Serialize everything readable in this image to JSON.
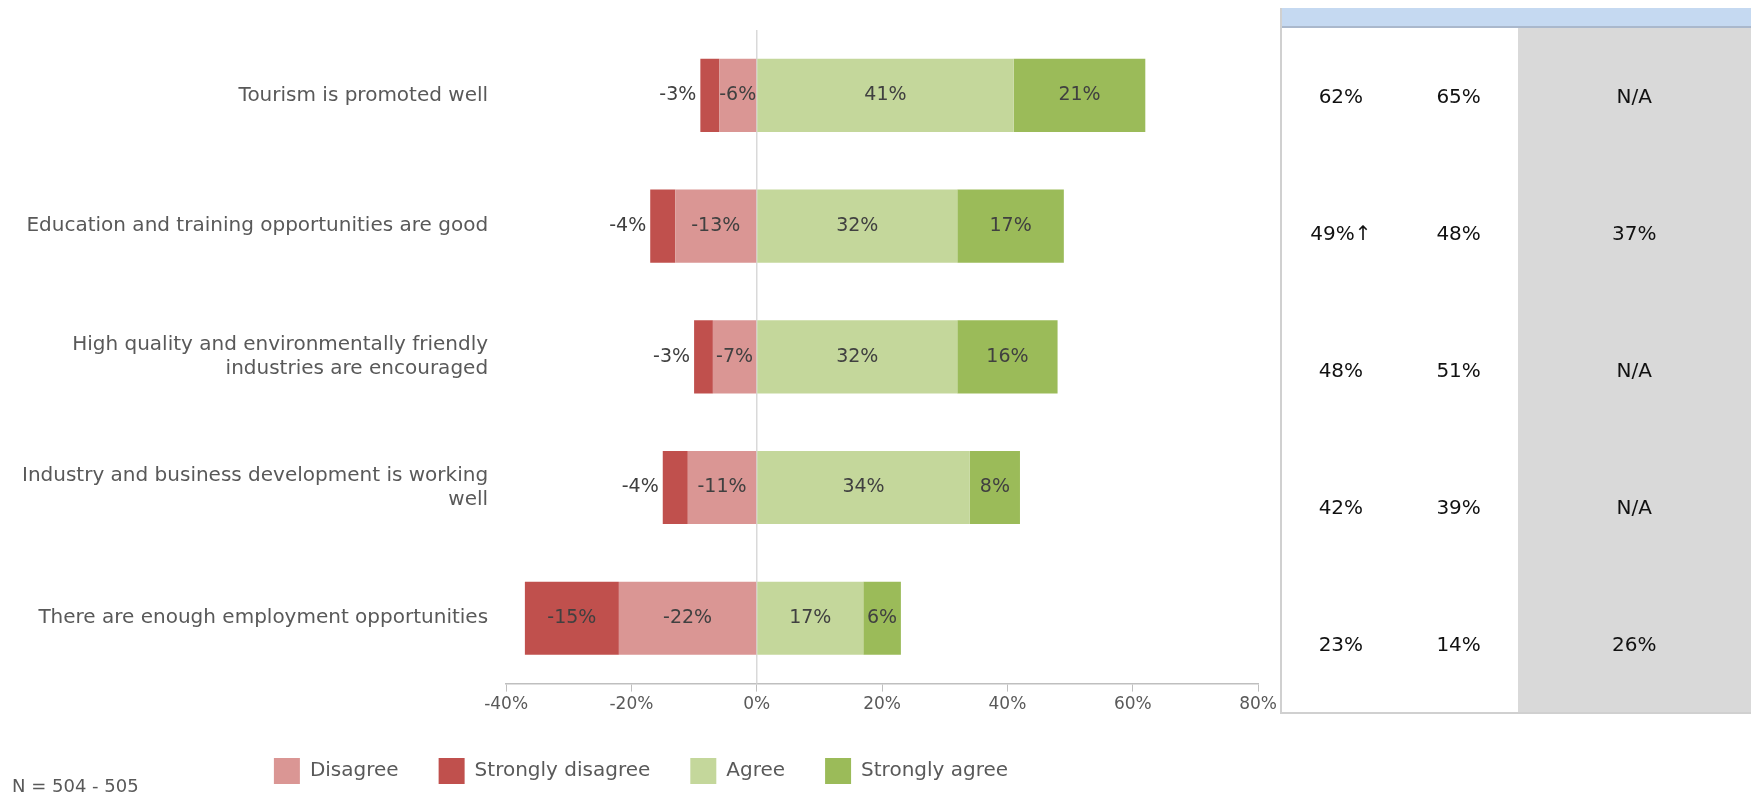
{
  "chart_data": [
    {
      "type": "bar",
      "orientation": "horizontal",
      "stacked": true,
      "categories": [
        "Tourism is promoted well",
        "Education and training opportunities are good",
        "High quality and environmentally friendly industries are encouraged",
        "Industry and business development is working well",
        "There are enough employment opportunities"
      ],
      "series": [
        {
          "name": "Disagree",
          "color": "#da9694",
          "values": [
            -6,
            -13,
            -7,
            -11,
            -22
          ],
          "value_labels": [
            "-6%",
            "-13%",
            "-7%",
            "-11%",
            "-22%"
          ]
        },
        {
          "name": "Strongly disagree",
          "color": "#c0504d",
          "values": [
            -3,
            -4,
            -3,
            -4,
            -15
          ],
          "value_labels": [
            "-3%",
            "-4%",
            "-3%",
            "-4%",
            "-15%"
          ]
        },
        {
          "name": "Agree",
          "color": "#c4d79b",
          "values": [
            41,
            32,
            32,
            34,
            17
          ],
          "value_labels": [
            "41%",
            "32%",
            "32%",
            "34%",
            "17%"
          ]
        },
        {
          "name": "Strongly agree",
          "color": "#9bbb59",
          "values": [
            21,
            17,
            16,
            8,
            6
          ],
          "value_labels": [
            "21%",
            "17%",
            "16%",
            "8%",
            "6%"
          ]
        }
      ],
      "xlim": [
        -40,
        80
      ],
      "xticks": [
        {
          "value": -40,
          "label": "-40%"
        },
        {
          "value": -20,
          "label": "-20%"
        },
        {
          "value": 0,
          "label": "0%"
        },
        {
          "value": 20,
          "label": "20%"
        },
        {
          "value": 40,
          "label": "40%"
        },
        {
          "value": 60,
          "label": "60%"
        },
        {
          "value": 80,
          "label": "80%"
        }
      ],
      "ref_lines": [
        {
          "axis": "x",
          "value": 0,
          "color": "#d9d9d9"
        }
      ],
      "grid": false,
      "legend": "bottom",
      "annotations": [
        "N = 504 - 505"
      ]
    },
    {
      "type": "other",
      "annotations": [
        "62%",
        "65%",
        "N/A",
        "49%↑",
        "48%",
        "37%",
        "48%",
        "51%",
        "N/A",
        "42%",
        "39%",
        "N/A",
        "23%",
        "14%",
        "26%"
      ]
    }
  ]
}
